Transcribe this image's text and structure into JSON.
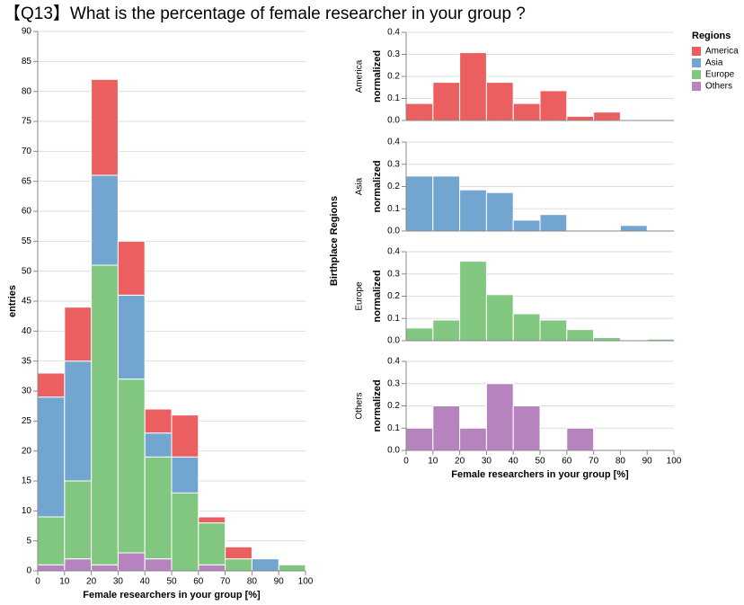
{
  "title": "【Q13】What is the percentage of female researcher in your group ?",
  "row_title": "Birthplace Regions",
  "legend": {
    "title": "Regions"
  },
  "chart_data": [
    {
      "type": "histogram",
      "stacked": true,
      "xlabel": "Female researchers in your group [%]",
      "ylabel": "entries",
      "bins": [
        0,
        10,
        20,
        30,
        40,
        50,
        60,
        70,
        80,
        90,
        100
      ],
      "series": [
        {
          "name": "Others",
          "color": "#b683bf",
          "values": [
            1,
            2,
            1,
            3,
            2,
            0,
            1,
            0,
            0,
            0
          ]
        },
        {
          "name": "Europe",
          "color": "#82c780",
          "values": [
            8,
            13,
            50,
            29,
            17,
            13,
            7,
            2,
            0,
            1
          ]
        },
        {
          "name": "Asia",
          "color": "#72a5cf",
          "values": [
            20,
            20,
            15,
            14,
            4,
            6,
            0,
            0,
            2,
            0
          ]
        },
        {
          "name": "America",
          "color": "#ec5f61",
          "values": [
            4,
            9,
            16,
            9,
            4,
            7,
            1,
            2,
            0,
            0
          ]
        }
      ],
      "xlim": [
        0,
        100
      ],
      "xticks": [
        0,
        10,
        20,
        30,
        40,
        50,
        60,
        70,
        80,
        90,
        100
      ],
      "ylim": [
        0,
        90
      ],
      "yticks": [
        0,
        5,
        10,
        15,
        20,
        25,
        30,
        35,
        40,
        45,
        50,
        55,
        60,
        65,
        70,
        75,
        80,
        85,
        90
      ],
      "grid": true
    },
    {
      "type": "histogram",
      "facet": "America",
      "ylabel": "normalized",
      "color": "#ec5f61",
      "bins": [
        0,
        10,
        20,
        30,
        40,
        50,
        60,
        70,
        80,
        90,
        100
      ],
      "values": [
        0.077,
        0.173,
        0.308,
        0.173,
        0.077,
        0.135,
        0.019,
        0.038,
        0,
        0
      ],
      "xlim": [
        0,
        100
      ],
      "ylim": [
        0,
        0.4
      ],
      "yticks": [
        {
          "value": 0,
          "label": "0.0"
        },
        0.1,
        0.2,
        0.3,
        0.4
      ],
      "grid": true
    },
    {
      "type": "histogram",
      "facet": "Asia",
      "ylabel": "normalized",
      "color": "#72a5cf",
      "bins": [
        0,
        10,
        20,
        30,
        40,
        50,
        60,
        70,
        80,
        90,
        100
      ],
      "values": [
        0.247,
        0.247,
        0.185,
        0.173,
        0.049,
        0.074,
        0,
        0,
        0.025,
        0
      ],
      "xlim": [
        0,
        100
      ],
      "ylim": [
        0,
        0.4
      ],
      "yticks": [
        {
          "value": 0,
          "label": "0.0"
        },
        0.1,
        0.2,
        0.3,
        0.4
      ],
      "grid": true
    },
    {
      "type": "histogram",
      "facet": "Europe",
      "ylabel": "normalized",
      "color": "#82c780",
      "bins": [
        0,
        10,
        20,
        30,
        40,
        50,
        60,
        70,
        80,
        90,
        100
      ],
      "values": [
        0.057,
        0.093,
        0.357,
        0.207,
        0.121,
        0.093,
        0.05,
        0.014,
        0,
        0.007
      ],
      "xlim": [
        0,
        100
      ],
      "ylim": [
        0,
        0.4
      ],
      "yticks": [
        {
          "value": 0,
          "label": "0.0"
        },
        0.1,
        0.2,
        0.3,
        0.4
      ],
      "grid": true
    },
    {
      "type": "histogram",
      "facet": "Others",
      "ylabel": "normalized",
      "color": "#b683bf",
      "xlabel": "Female researchers in your group [%]",
      "bins": [
        0,
        10,
        20,
        30,
        40,
        50,
        60,
        70,
        80,
        90,
        100
      ],
      "values": [
        0.1,
        0.2,
        0.1,
        0.3,
        0.2,
        0,
        0.1,
        0,
        0,
        0
      ],
      "xlim": [
        0,
        100
      ],
      "xticks": [
        0,
        10,
        20,
        30,
        40,
        50,
        60,
        70,
        80,
        90,
        100
      ],
      "ylim": [
        0,
        0.4
      ],
      "yticks": [
        {
          "value": 0,
          "label": "0.0"
        },
        0.1,
        0.2,
        0.3,
        0.4
      ],
      "grid": true
    }
  ]
}
